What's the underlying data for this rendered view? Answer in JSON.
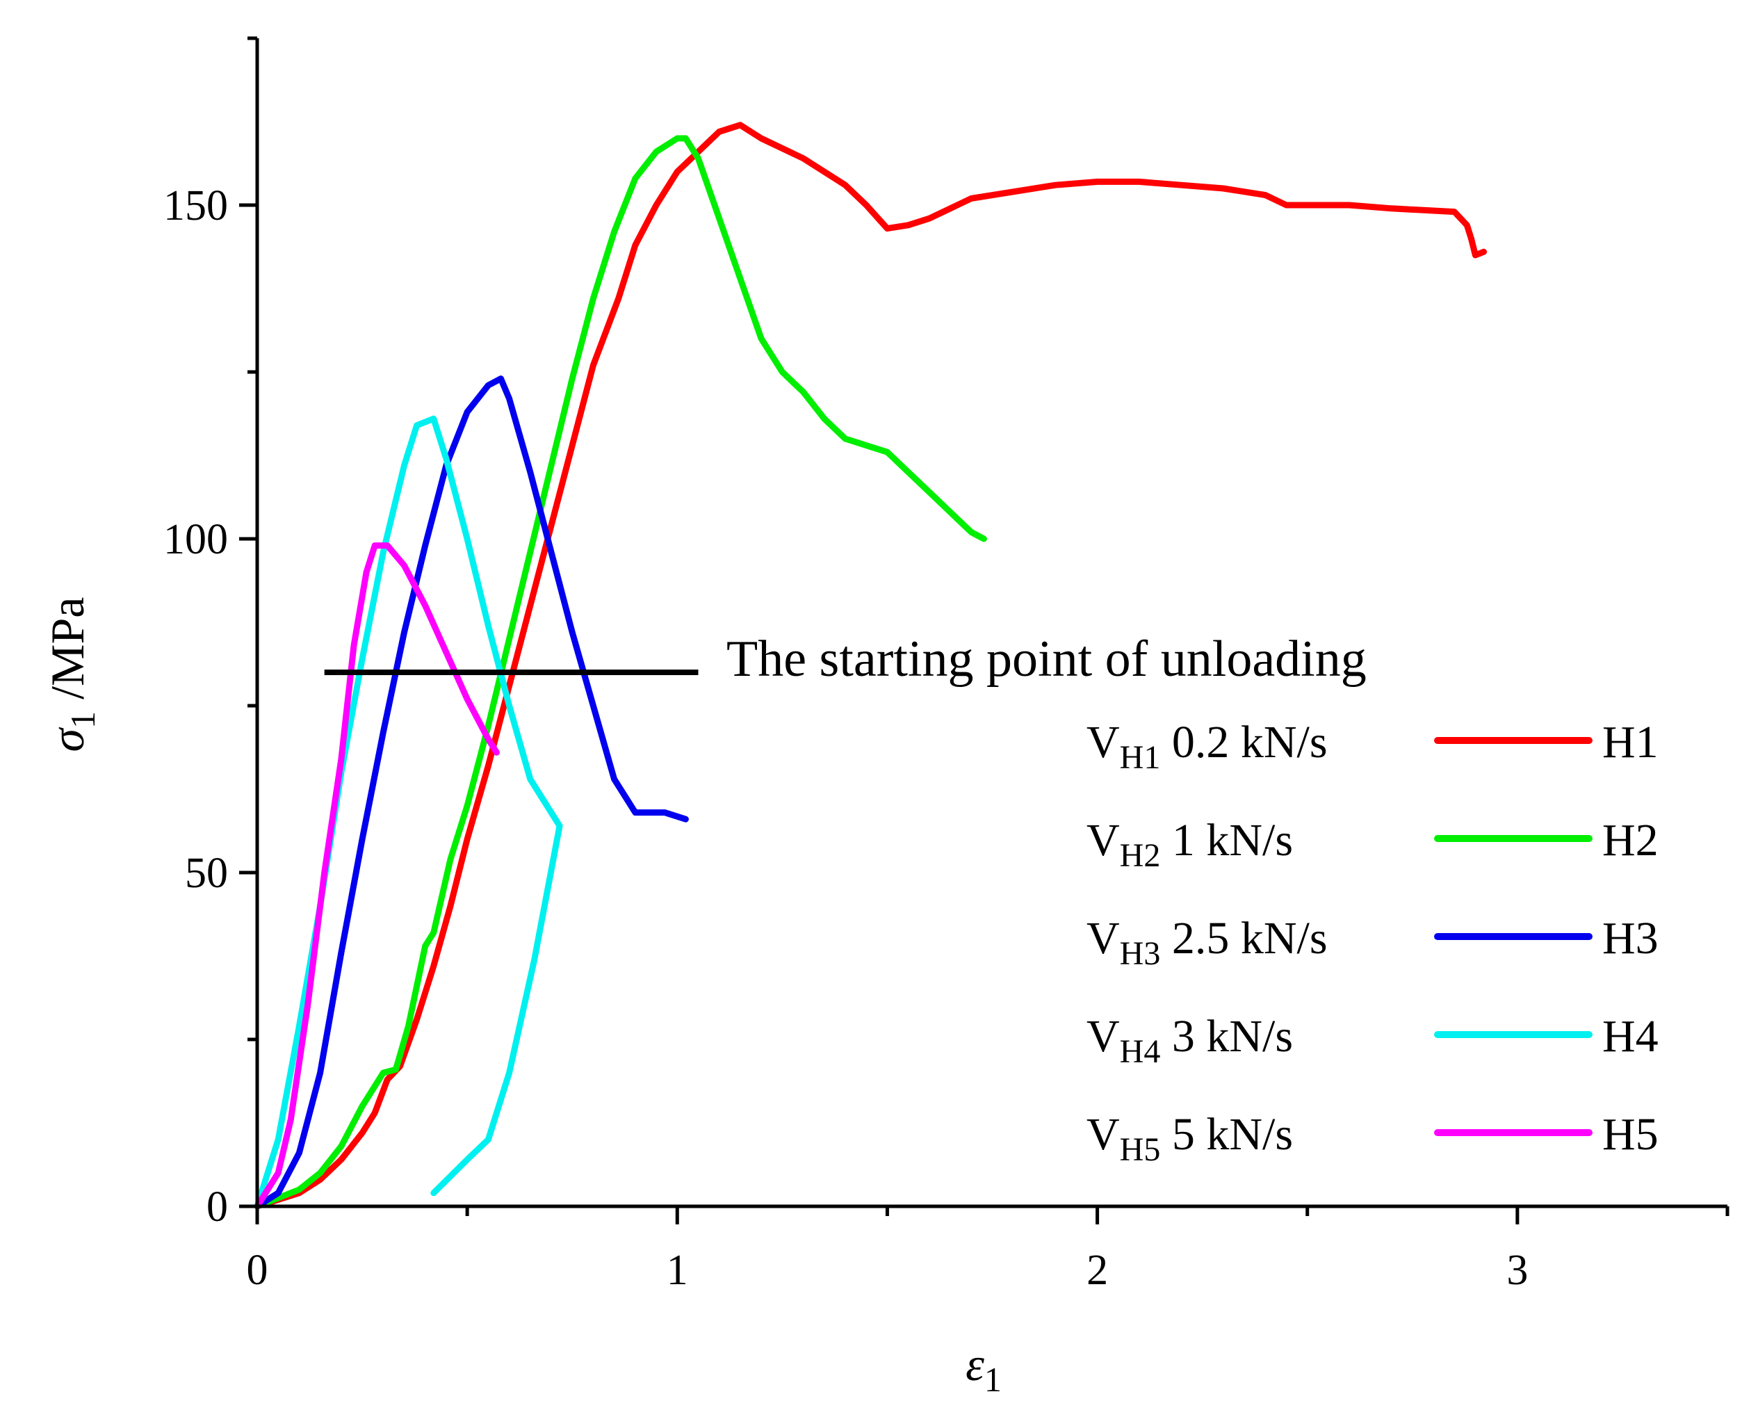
{
  "chart_data": {
    "type": "line",
    "title": "",
    "xlabel": {
      "symbol": "ε",
      "subscript": "1"
    },
    "ylabel": {
      "symbol": "σ",
      "subscript": "1",
      "unit": " /MPa"
    },
    "xlim": [
      0,
      3.5
    ],
    "ylim": [
      0,
      175
    ],
    "x_ticks": [
      0,
      1,
      2,
      3
    ],
    "x_minor_ticks": [
      0.5,
      1.5,
      2.5,
      3.5
    ],
    "y_ticks": [
      0,
      50,
      100,
      150
    ],
    "y_minor_ticks": [
      25,
      75,
      125,
      175
    ],
    "grid": false,
    "legend_position": "right",
    "annotation": {
      "text": "The starting point of unloading",
      "line": {
        "x_start": 0.16,
        "x_end": 1.05,
        "y": 80
      },
      "color": "#000000"
    },
    "series": [
      {
        "name": "H1",
        "legend_main": "V",
        "legend_sub": "H1",
        "legend_rate": "0.2 kN/s",
        "color": "#ff0000",
        "points": [
          [
            0,
            0
          ],
          [
            0.1,
            2
          ],
          [
            0.15,
            4
          ],
          [
            0.2,
            7
          ],
          [
            0.25,
            11
          ],
          [
            0.28,
            14
          ],
          [
            0.31,
            19
          ],
          [
            0.34,
            21
          ],
          [
            0.38,
            28
          ],
          [
            0.42,
            36
          ],
          [
            0.46,
            45
          ],
          [
            0.5,
            55
          ],
          [
            0.55,
            66
          ],
          [
            0.6,
            78
          ],
          [
            0.65,
            90
          ],
          [
            0.7,
            102
          ],
          [
            0.75,
            114
          ],
          [
            0.8,
            126
          ],
          [
            0.86,
            136
          ],
          [
            0.9,
            144
          ],
          [
            0.95,
            150
          ],
          [
            1.0,
            155
          ],
          [
            1.05,
            158
          ],
          [
            1.1,
            161
          ],
          [
            1.15,
            162
          ],
          [
            1.2,
            160
          ],
          [
            1.3,
            157
          ],
          [
            1.4,
            153
          ],
          [
            1.45,
            150
          ],
          [
            1.5,
            146.5
          ],
          [
            1.55,
            147
          ],
          [
            1.6,
            148
          ],
          [
            1.65,
            149.5
          ],
          [
            1.7,
            151
          ],
          [
            1.8,
            152
          ],
          [
            1.9,
            153
          ],
          [
            2.0,
            153.5
          ],
          [
            2.1,
            153.5
          ],
          [
            2.2,
            153
          ],
          [
            2.3,
            152.5
          ],
          [
            2.4,
            151.5
          ],
          [
            2.45,
            150
          ],
          [
            2.5,
            150
          ],
          [
            2.6,
            150
          ],
          [
            2.7,
            149.5
          ],
          [
            2.85,
            149
          ],
          [
            2.88,
            147
          ],
          [
            2.89,
            145
          ],
          [
            2.9,
            142.5
          ],
          [
            2.92,
            143
          ]
        ]
      },
      {
        "name": "H2",
        "legend_main": "V",
        "legend_sub": "H2",
        "legend_rate": "1 kN/s",
        "color": "#00ee00",
        "points": [
          [
            0,
            0
          ],
          [
            0.1,
            2.5
          ],
          [
            0.15,
            5
          ],
          [
            0.2,
            9
          ],
          [
            0.25,
            15
          ],
          [
            0.3,
            20
          ],
          [
            0.33,
            20.5
          ],
          [
            0.36,
            27
          ],
          [
            0.4,
            39
          ],
          [
            0.42,
            41
          ],
          [
            0.46,
            52
          ],
          [
            0.5,
            60
          ],
          [
            0.55,
            72
          ],
          [
            0.6,
            85
          ],
          [
            0.65,
            98
          ],
          [
            0.7,
            111
          ],
          [
            0.75,
            124
          ],
          [
            0.8,
            136
          ],
          [
            0.85,
            146
          ],
          [
            0.9,
            154
          ],
          [
            0.95,
            158
          ],
          [
            1.0,
            160
          ],
          [
            1.02,
            160
          ],
          [
            1.05,
            157
          ],
          [
            1.1,
            148
          ],
          [
            1.15,
            139
          ],
          [
            1.2,
            130
          ],
          [
            1.25,
            125
          ],
          [
            1.3,
            122
          ],
          [
            1.35,
            118
          ],
          [
            1.4,
            115
          ],
          [
            1.5,
            113
          ],
          [
            1.55,
            110
          ],
          [
            1.6,
            107
          ],
          [
            1.65,
            104
          ],
          [
            1.7,
            101
          ],
          [
            1.73,
            100
          ]
        ]
      },
      {
        "name": "H3",
        "legend_main": "V",
        "legend_sub": "H3",
        "legend_rate": "2.5 kN/s",
        "color": "#0000ee",
        "points": [
          [
            0,
            0
          ],
          [
            0.05,
            2
          ],
          [
            0.1,
            8
          ],
          [
            0.15,
            20
          ],
          [
            0.2,
            38
          ],
          [
            0.25,
            55
          ],
          [
            0.3,
            71
          ],
          [
            0.35,
            86
          ],
          [
            0.4,
            99
          ],
          [
            0.45,
            111
          ],
          [
            0.5,
            119
          ],
          [
            0.55,
            123
          ],
          [
            0.58,
            124
          ],
          [
            0.6,
            121
          ],
          [
            0.65,
            110
          ],
          [
            0.7,
            98
          ],
          [
            0.75,
            86
          ],
          [
            0.8,
            75
          ],
          [
            0.85,
            64
          ],
          [
            0.9,
            59
          ],
          [
            0.92,
            59
          ],
          [
            0.97,
            59
          ],
          [
            1.02,
            58
          ]
        ]
      },
      {
        "name": "H4",
        "legend_main": "V",
        "legend_sub": "H4",
        "legend_rate": "3 kN/s",
        "color": "#00f0f0",
        "points": [
          [
            0,
            0
          ],
          [
            0.05,
            10
          ],
          [
            0.1,
            27
          ],
          [
            0.15,
            45
          ],
          [
            0.2,
            65
          ],
          [
            0.25,
            82
          ],
          [
            0.3,
            98
          ],
          [
            0.35,
            111
          ],
          [
            0.38,
            117
          ],
          [
            0.42,
            118
          ],
          [
            0.45,
            112
          ],
          [
            0.5,
            100
          ],
          [
            0.55,
            87
          ],
          [
            0.6,
            75
          ],
          [
            0.65,
            64
          ],
          [
            0.72,
            57
          ],
          [
            0.66,
            37
          ],
          [
            0.6,
            20
          ],
          [
            0.55,
            10
          ],
          [
            0.5,
            7
          ],
          [
            0.42,
            2
          ]
        ]
      },
      {
        "name": "H5",
        "legend_main": "V",
        "legend_sub": "H5",
        "legend_rate": "5 kN/s",
        "color": "#ff00ff",
        "points": [
          [
            0,
            0
          ],
          [
            0.05,
            5
          ],
          [
            0.08,
            13
          ],
          [
            0.12,
            30
          ],
          [
            0.16,
            50
          ],
          [
            0.2,
            67
          ],
          [
            0.23,
            84
          ],
          [
            0.26,
            95
          ],
          [
            0.28,
            99
          ],
          [
            0.31,
            99
          ],
          [
            0.35,
            96
          ],
          [
            0.4,
            90
          ],
          [
            0.45,
            83
          ],
          [
            0.5,
            76
          ],
          [
            0.55,
            70
          ],
          [
            0.57,
            68
          ]
        ]
      }
    ]
  }
}
